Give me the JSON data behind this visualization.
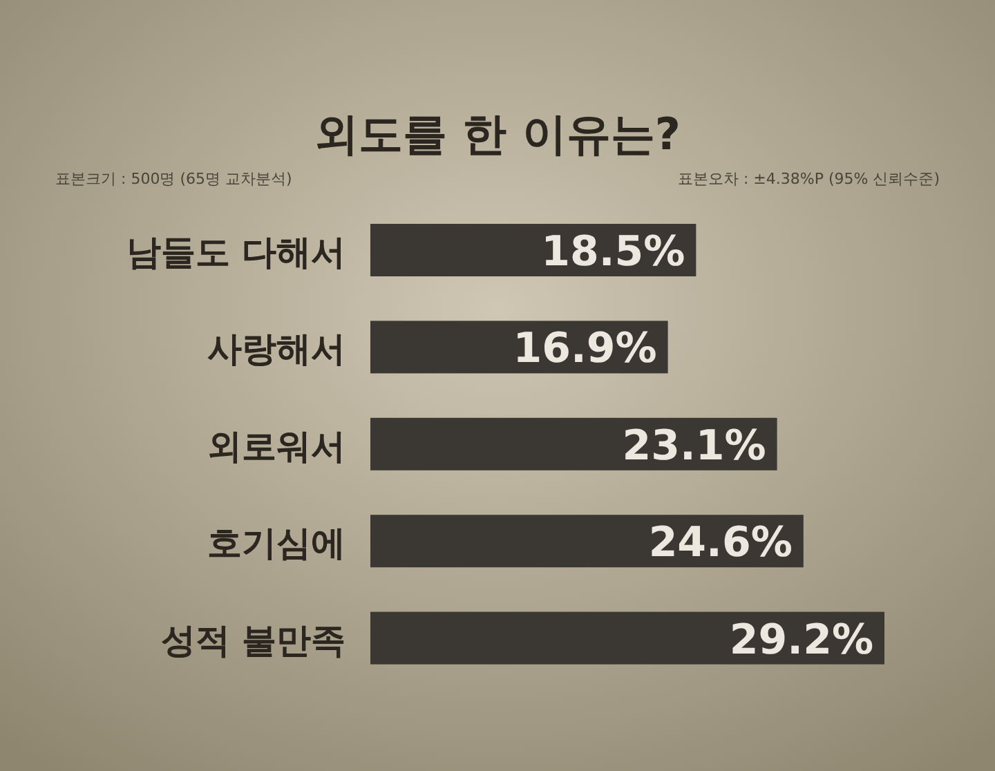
{
  "chart_data": {
    "type": "bar",
    "orientation": "horizontal",
    "title": "외도를 한 이유는?",
    "annotations": [
      "표본크기 : 500명 (65명 교차분석)",
      "표본오차 : ±4.38%P (95% 신뢰수준)"
    ],
    "categories": [
      "남들도 다해서",
      "사랑해서",
      "외로워서",
      "호기심에",
      "성적 불만족"
    ],
    "values": [
      18.5,
      16.9,
      23.1,
      24.6,
      29.2
    ],
    "value_labels": [
      "18.5%",
      "16.9%",
      "23.1%",
      "24.6%",
      "29.2%"
    ],
    "color": "#3b3834"
  }
}
